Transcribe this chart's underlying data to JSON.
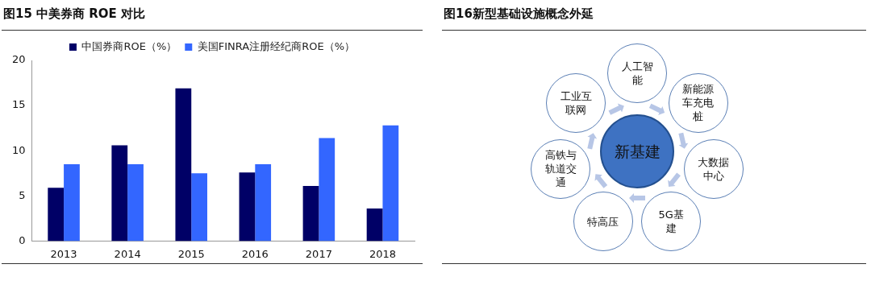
{
  "chart_data": [
    {
      "type": "bar",
      "title": "图15 中美券商 ROE 对比",
      "categories": [
        "2013",
        "2014",
        "2015",
        "2016",
        "2017",
        "2018"
      ],
      "series": [
        {
          "name": "中国券商ROE（%）",
          "color": "#000066",
          "values": [
            5.9,
            10.6,
            16.9,
            7.6,
            6.1,
            3.6
          ]
        },
        {
          "name": "美国FINRA注册经纪商ROE（%）",
          "color": "#3366ff",
          "values": [
            8.5,
            8.5,
            7.5,
            8.5,
            11.4,
            12.8
          ]
        }
      ],
      "ylim": [
        0,
        20
      ],
      "yticks": [
        0,
        5,
        10,
        15,
        20
      ],
      "grid": false,
      "legend": "top"
    },
    {
      "type": "other",
      "title": "图16新型基础设施概念外延",
      "annotations": [
        "新基建",
        "人工智能",
        "新能源车充电桩",
        "大数据中心",
        "5G基建",
        "特高压",
        "高铁与轨道交通",
        "工业互联网"
      ]
    }
  ]
}
